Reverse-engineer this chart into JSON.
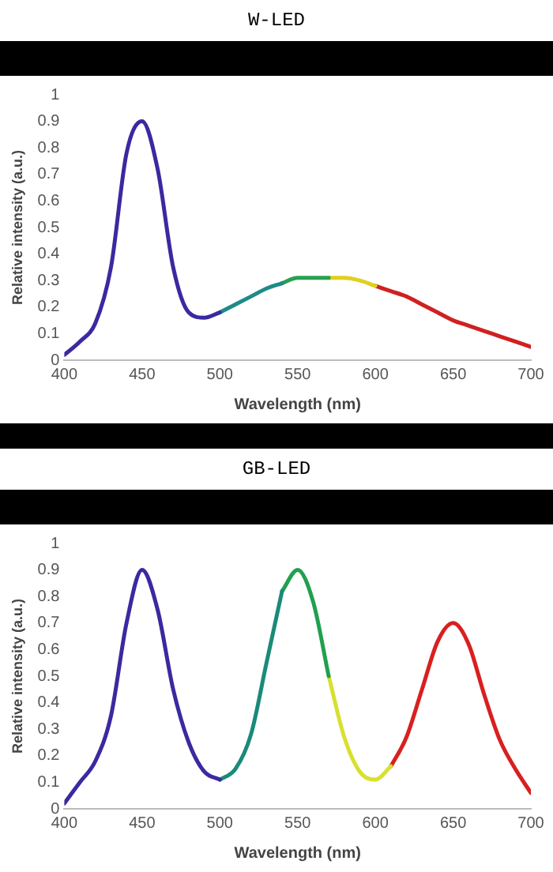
{
  "chart_data": [
    {
      "type": "line",
      "title": "W-LED",
      "xlabel": "Wavelength (nm)",
      "ylabel": "Relative intensity (a.u.)",
      "series": [
        {
          "color": "#3a2aa0",
          "x": [
            400,
            410,
            420,
            430,
            440,
            450,
            460,
            470,
            480,
            490,
            500
          ],
          "values": [
            0.02,
            0.07,
            0.14,
            0.35,
            0.78,
            0.9,
            0.72,
            0.35,
            0.18,
            0.16,
            0.18
          ]
        },
        {
          "color": "#1f8a8a",
          "x": [
            500,
            510,
            520,
            530,
            540
          ],
          "values": [
            0.18,
            0.21,
            0.24,
            0.27,
            0.29
          ]
        },
        {
          "color": "#2aa050",
          "x": [
            540,
            550,
            560,
            570
          ],
          "values": [
            0.29,
            0.31,
            0.31,
            0.31
          ]
        },
        {
          "color": "#e0d020",
          "x": [
            570,
            580,
            590,
            600
          ],
          "values": [
            0.31,
            0.31,
            0.3,
            0.28
          ]
        },
        {
          "color": "#d02020",
          "x": [
            600,
            610,
            620,
            630,
            640,
            650,
            660,
            670,
            680,
            690,
            700
          ],
          "values": [
            0.28,
            0.26,
            0.24,
            0.21,
            0.18,
            0.15,
            0.13,
            0.11,
            0.09,
            0.07,
            0.05
          ]
        }
      ],
      "xlim": [
        400,
        700
      ],
      "xticks": [
        400,
        450,
        500,
        550,
        600,
        650,
        700
      ],
      "ylim": [
        0,
        1
      ],
      "yticks": [
        0,
        0.1,
        0.2,
        0.3,
        0.4,
        0.5,
        0.6,
        0.7,
        0.8,
        0.9,
        1
      ],
      "grid": false,
      "legend": false,
      "marker": "none",
      "line_style": "solid"
    },
    {
      "type": "line",
      "title": "GB-LED",
      "xlabel": "Wavelength (nm)",
      "ylabel": "Relative intensity (a.u.)",
      "series": [
        {
          "color": "#3a2aa0",
          "x": [
            400,
            410,
            420,
            430,
            440,
            450,
            460,
            470,
            480,
            490,
            500
          ],
          "values": [
            0.02,
            0.1,
            0.18,
            0.35,
            0.7,
            0.9,
            0.75,
            0.45,
            0.25,
            0.14,
            0.11
          ]
        },
        {
          "color": "#1a8a7a",
          "x": [
            500,
            510,
            520,
            530,
            540
          ],
          "values": [
            0.11,
            0.15,
            0.28,
            0.55,
            0.82
          ]
        },
        {
          "color": "#20a050",
          "x": [
            540,
            550,
            560,
            570
          ],
          "values": [
            0.82,
            0.9,
            0.78,
            0.5
          ]
        },
        {
          "color": "#d8e030",
          "x": [
            570,
            580,
            590,
            600,
            610
          ],
          "values": [
            0.5,
            0.27,
            0.14,
            0.11,
            0.16
          ]
        },
        {
          "color": "#d82020",
          "x": [
            610,
            620,
            630,
            640,
            650,
            660,
            670,
            680,
            690,
            700
          ],
          "values": [
            0.16,
            0.27,
            0.45,
            0.63,
            0.7,
            0.62,
            0.43,
            0.26,
            0.15,
            0.06
          ]
        }
      ],
      "xlim": [
        400,
        700
      ],
      "xticks": [
        400,
        450,
        500,
        550,
        600,
        650,
        700
      ],
      "ylim": [
        0,
        1
      ],
      "yticks": [
        0,
        0.1,
        0.2,
        0.3,
        0.4,
        0.5,
        0.6,
        0.7,
        0.8,
        0.9,
        1
      ],
      "grid": false,
      "legend": false,
      "marker": "none",
      "line_style": "solid"
    }
  ]
}
